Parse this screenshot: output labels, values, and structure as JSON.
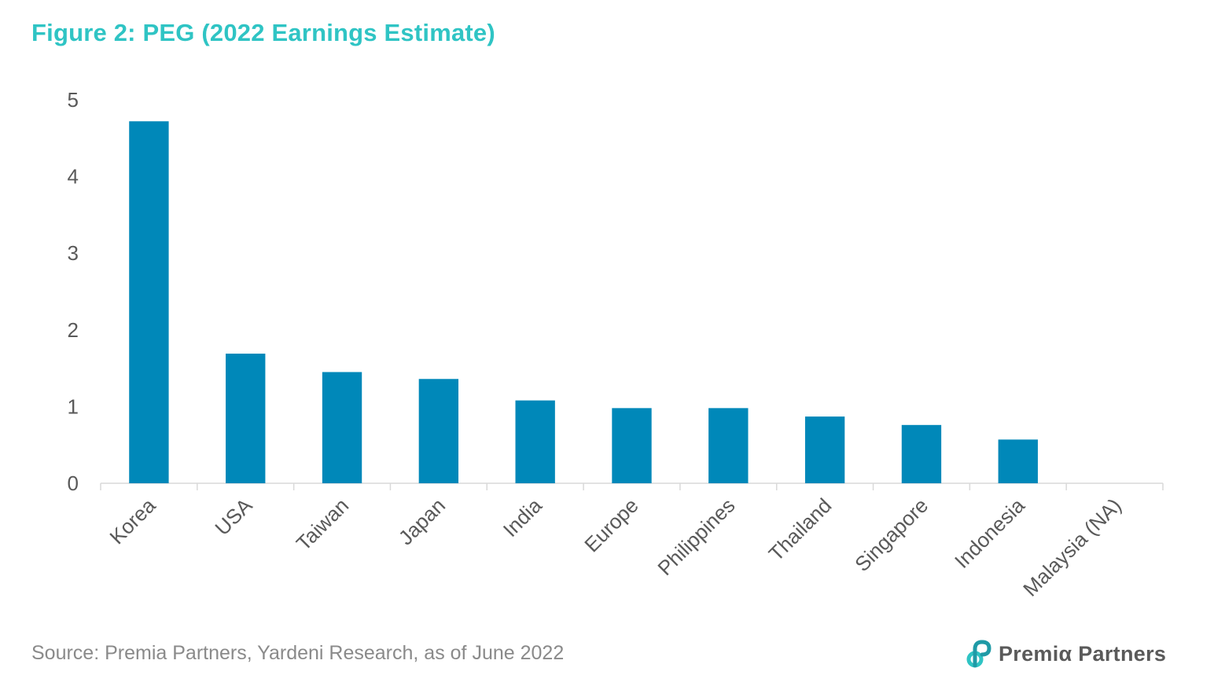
{
  "title": "Figure 2: PEG (2022 Earnings Estimate)",
  "source": "Source: Premia Partners, Yardeni Research, as of June 2022",
  "logo": {
    "text": "Premiα Partners",
    "icon": "premia-logo-icon"
  },
  "colors": {
    "title": "#2fc4c4",
    "bar": "#0088b9",
    "axis_text": "#595959",
    "source_text": "#8a8a8a",
    "axis_line": "#d9d9d9"
  },
  "chart_data": {
    "type": "bar",
    "categories": [
      "Korea",
      "USA",
      "Taiwan",
      "Japan",
      "India",
      "Europe",
      "Philippines",
      "Thailand",
      "Singapore",
      "Indonesia",
      "Malaysia (NA)"
    ],
    "values": [
      4.72,
      1.69,
      1.45,
      1.36,
      1.08,
      0.98,
      0.98,
      0.87,
      0.76,
      0.57,
      null
    ],
    "ylim": [
      0,
      5
    ],
    "yticks": [
      0,
      1,
      2,
      3,
      4,
      5
    ],
    "grid": false,
    "legend": "none"
  }
}
